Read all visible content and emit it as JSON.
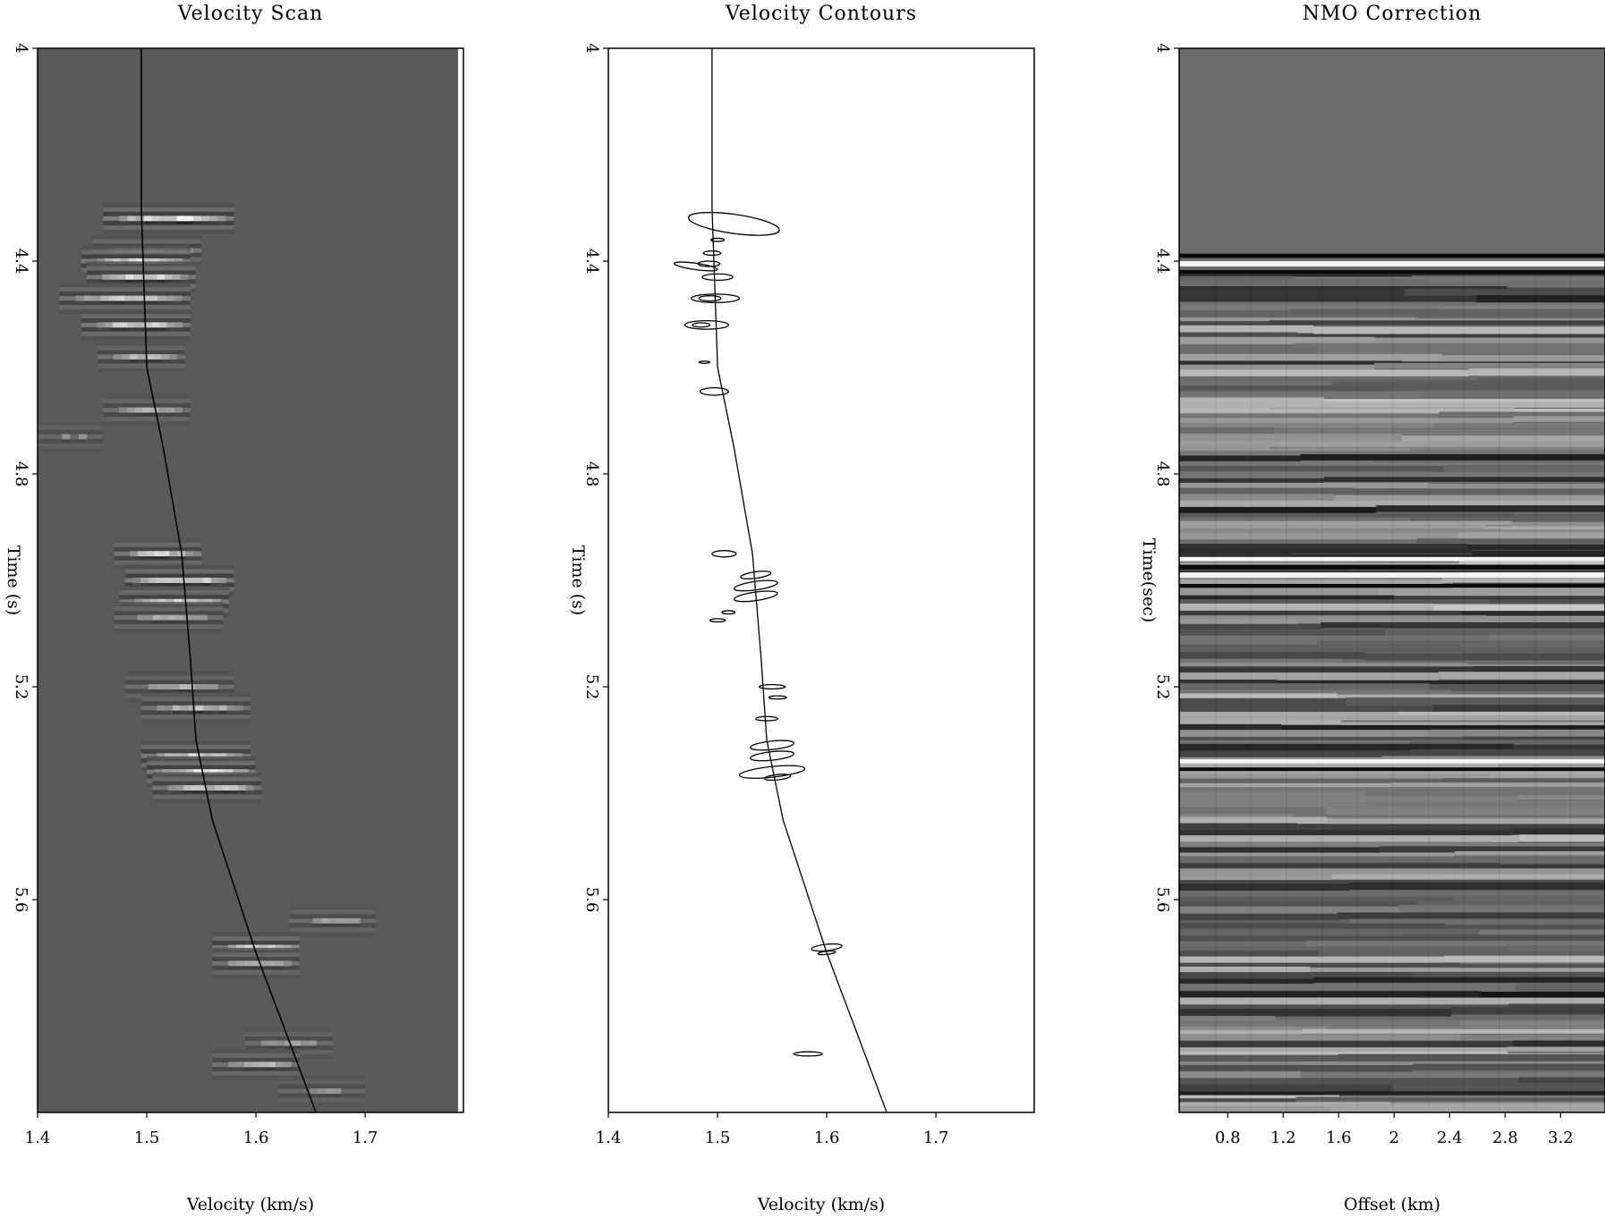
{
  "chart_data": [
    {
      "type": "heatmap",
      "title": "Velocity Scan",
      "xlabel": "Velocity (km/s)",
      "ylabel": "Time (s)",
      "xlim": [
        1.4,
        1.79
      ],
      "ylim": [
        4.0,
        6.0
      ],
      "x_ticks": [
        "1.4",
        "1.5",
        "1.6",
        "1.7"
      ],
      "y_ticks": [
        "4",
        "4.4",
        "4.8",
        "5.2",
        "5.6"
      ],
      "background_color": "#5a5a5a",
      "picked_velocity": {
        "t": [
          4.0,
          4.3,
          4.6,
          4.75,
          4.95,
          5.15,
          5.3,
          5.45,
          5.7,
          6.0
        ],
        "v": [
          1.495,
          1.495,
          1.5,
          1.515,
          1.532,
          1.54,
          1.545,
          1.56,
          1.6,
          1.655
        ]
      },
      "semblance_events": [
        {
          "t": 4.32,
          "v": 1.52,
          "amp": 1.0,
          "dv": 0.06
        },
        {
          "t": 4.38,
          "v": 1.5,
          "amp": 0.8,
          "dv": 0.05
        },
        {
          "t": 4.4,
          "v": 1.49,
          "amp": 0.9,
          "dv": 0.05
        },
        {
          "t": 4.43,
          "v": 1.495,
          "amp": 0.9,
          "dv": 0.05
        },
        {
          "t": 4.47,
          "v": 1.48,
          "amp": 0.8,
          "dv": 0.06
        },
        {
          "t": 4.52,
          "v": 1.49,
          "amp": 0.9,
          "dv": 0.05
        },
        {
          "t": 4.58,
          "v": 1.495,
          "amp": 0.7,
          "dv": 0.04
        },
        {
          "t": 4.68,
          "v": 1.5,
          "amp": 0.6,
          "dv": 0.04
        },
        {
          "t": 4.73,
          "v": 1.43,
          "amp": 0.4,
          "dv": 0.03
        },
        {
          "t": 4.95,
          "v": 1.51,
          "amp": 0.8,
          "dv": 0.04
        },
        {
          "t": 5.0,
          "v": 1.53,
          "amp": 1.0,
          "dv": 0.05
        },
        {
          "t": 5.04,
          "v": 1.525,
          "amp": 0.9,
          "dv": 0.05
        },
        {
          "t": 5.07,
          "v": 1.52,
          "amp": 0.6,
          "dv": 0.05
        },
        {
          "t": 5.2,
          "v": 1.53,
          "amp": 0.6,
          "dv": 0.05
        },
        {
          "t": 5.24,
          "v": 1.545,
          "amp": 0.7,
          "dv": 0.05
        },
        {
          "t": 5.33,
          "v": 1.545,
          "amp": 0.9,
          "dv": 0.05
        },
        {
          "t": 5.36,
          "v": 1.55,
          "amp": 1.0,
          "dv": 0.05
        },
        {
          "t": 5.39,
          "v": 1.555,
          "amp": 0.8,
          "dv": 0.05
        },
        {
          "t": 5.64,
          "v": 1.67,
          "amp": 0.5,
          "dv": 0.04
        },
        {
          "t": 5.69,
          "v": 1.6,
          "amp": 0.9,
          "dv": 0.04
        },
        {
          "t": 5.72,
          "v": 1.6,
          "amp": 0.7,
          "dv": 0.04
        },
        {
          "t": 5.87,
          "v": 1.63,
          "amp": 0.5,
          "dv": 0.04
        },
        {
          "t": 5.91,
          "v": 1.6,
          "amp": 0.7,
          "dv": 0.04
        },
        {
          "t": 5.96,
          "v": 1.66,
          "amp": 0.4,
          "dv": 0.04
        }
      ]
    },
    {
      "type": "line",
      "title": "Velocity Contours",
      "xlabel": "Velocity (km/s)",
      "ylabel": "Time (s)",
      "xlim": [
        1.4,
        1.79
      ],
      "ylim": [
        4.0,
        6.0
      ],
      "x_ticks": [
        "1.4",
        "1.5",
        "1.6",
        "1.7"
      ],
      "y_ticks": [
        "4",
        "4.4",
        "4.8",
        "5.2",
        "5.6"
      ],
      "picked_velocity": {
        "t": [
          4.0,
          4.3,
          4.6,
          4.75,
          4.95,
          5.15,
          5.3,
          5.45,
          5.7,
          6.0
        ],
        "v": [
          1.495,
          1.495,
          1.5,
          1.515,
          1.532,
          1.54,
          1.545,
          1.56,
          1.6,
          1.655
        ]
      },
      "contours": [
        {
          "t": 4.33,
          "v": 1.515,
          "rv": 0.042,
          "rt": 0.018,
          "rot": 8
        },
        {
          "t": 4.36,
          "v": 1.5,
          "rv": 0.006,
          "rt": 0.003,
          "rot": 0
        },
        {
          "t": 4.385,
          "v": 1.495,
          "rv": 0.008,
          "rt": 0.004,
          "rot": 0
        },
        {
          "t": 4.405,
          "v": 1.492,
          "rv": 0.01,
          "rt": 0.005,
          "rot": 0
        },
        {
          "t": 4.41,
          "v": 1.48,
          "rv": 0.02,
          "rt": 0.006,
          "rot": 8
        },
        {
          "t": 4.43,
          "v": 1.5,
          "rv": 0.014,
          "rt": 0.006,
          "rot": 0
        },
        {
          "t": 4.47,
          "v": 1.498,
          "rv": 0.022,
          "rt": 0.008,
          "rot": 0
        },
        {
          "t": 4.47,
          "v": 1.493,
          "rv": 0.01,
          "rt": 0.005,
          "rot": 0
        },
        {
          "t": 4.52,
          "v": 1.49,
          "rv": 0.02,
          "rt": 0.008,
          "rot": 0
        },
        {
          "t": 4.52,
          "v": 1.485,
          "rv": 0.008,
          "rt": 0.004,
          "rot": 0
        },
        {
          "t": 4.59,
          "v": 1.488,
          "rv": 0.005,
          "rt": 0.002,
          "rot": 0
        },
        {
          "t": 4.645,
          "v": 1.497,
          "rv": 0.013,
          "rt": 0.007,
          "rot": 0
        },
        {
          "t": 4.95,
          "v": 1.506,
          "rv": 0.011,
          "rt": 0.006,
          "rot": 0
        },
        {
          "t": 4.99,
          "v": 1.535,
          "rv": 0.014,
          "rt": 0.006,
          "rot": -8
        },
        {
          "t": 5.01,
          "v": 1.535,
          "rv": 0.02,
          "rt": 0.008,
          "rot": -8
        },
        {
          "t": 5.03,
          "v": 1.535,
          "rv": 0.02,
          "rt": 0.008,
          "rot": -8
        },
        {
          "t": 5.06,
          "v": 1.51,
          "rv": 0.006,
          "rt": 0.003,
          "rot": 0
        },
        {
          "t": 5.075,
          "v": 1.5,
          "rv": 0.007,
          "rt": 0.003,
          "rot": 0
        },
        {
          "t": 5.2,
          "v": 1.55,
          "rv": 0.012,
          "rt": 0.004,
          "rot": 0
        },
        {
          "t": 5.22,
          "v": 1.555,
          "rv": 0.008,
          "rt": 0.003,
          "rot": 0
        },
        {
          "t": 5.26,
          "v": 1.545,
          "rv": 0.01,
          "rt": 0.004,
          "rot": 0
        },
        {
          "t": 5.31,
          "v": 1.55,
          "rv": 0.02,
          "rt": 0.008,
          "rot": -6
        },
        {
          "t": 5.33,
          "v": 1.55,
          "rv": 0.02,
          "rt": 0.008,
          "rot": -6
        },
        {
          "t": 5.36,
          "v": 1.55,
          "rv": 0.03,
          "rt": 0.01,
          "rot": -6
        },
        {
          "t": 5.37,
          "v": 1.555,
          "rv": 0.012,
          "rt": 0.005,
          "rot": -6
        },
        {
          "t": 5.69,
          "v": 1.6,
          "rv": 0.014,
          "rt": 0.006,
          "rot": -6
        },
        {
          "t": 5.7,
          "v": 1.6,
          "rv": 0.008,
          "rt": 0.003,
          "rot": -6
        },
        {
          "t": 5.89,
          "v": 1.583,
          "rv": 0.013,
          "rt": 0.004,
          "rot": 0
        }
      ]
    },
    {
      "type": "heatmap",
      "title": "NMO Correction",
      "xlabel": "Offset (km)",
      "ylabel": "Time(sec)",
      "xlim": [
        0.45,
        3.52
      ],
      "ylim": [
        4.0,
        6.0
      ],
      "x_ticks": [
        "0.8",
        "1.2",
        "1.6",
        "2",
        "2.4",
        "2.8",
        "3.2"
      ],
      "y_ticks": [
        "4",
        "4.4",
        "4.8",
        "5.2",
        "5.6"
      ],
      "background_color": "#6c6c6c",
      "reflectors": [
        {
          "t": 4.39,
          "amp": -1.0,
          "w": 0.008
        },
        {
          "t": 4.405,
          "amp": 1.0,
          "w": 0.01
        },
        {
          "t": 4.42,
          "amp": -0.7,
          "w": 0.006
        },
        {
          "t": 4.96,
          "amp": 0.9,
          "w": 0.008
        },
        {
          "t": 4.975,
          "amp": -1.0,
          "w": 0.009
        },
        {
          "t": 4.99,
          "amp": 1.0,
          "w": 0.01
        },
        {
          "t": 5.01,
          "amp": -0.7,
          "w": 0.006
        },
        {
          "t": 5.34,
          "amp": 1.0,
          "w": 0.008
        },
        {
          "t": 5.355,
          "amp": -0.6,
          "w": 0.006
        }
      ]
    }
  ]
}
